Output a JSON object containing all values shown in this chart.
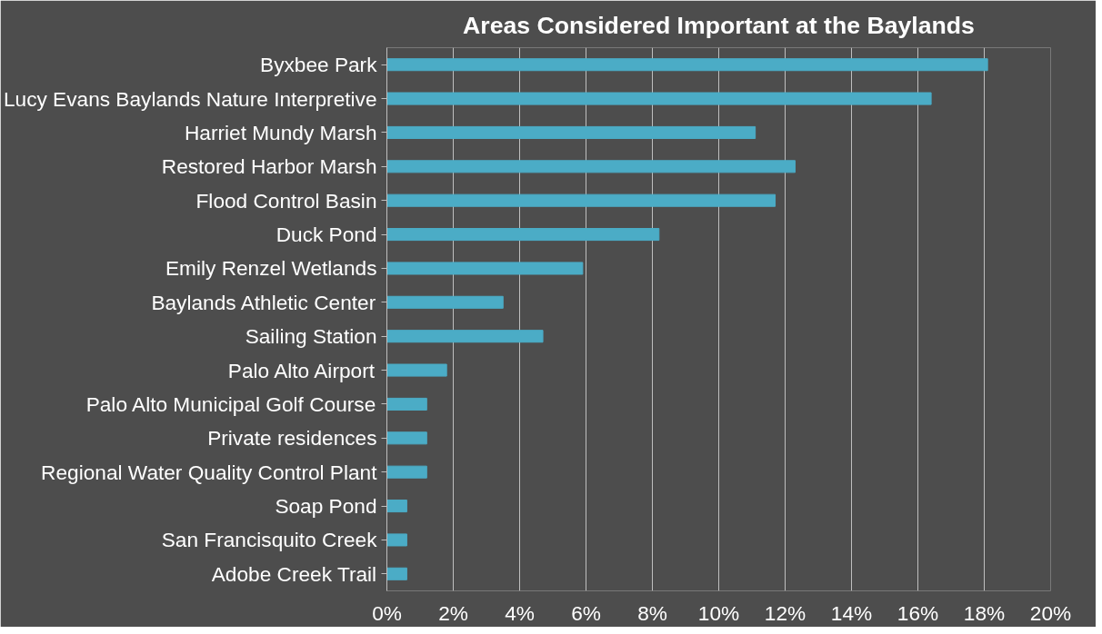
{
  "chart_data": {
    "type": "bar",
    "orientation": "horizontal",
    "title": "Areas Considered Important at the Baylands",
    "categories": [
      "Byxbee Park",
      "Lucy Evans Baylands Nature Interpretive",
      "Harriet Mundy Marsh",
      "Restored Harbor Marsh",
      "Flood Control Basin",
      "Duck Pond",
      "Emily Renzel Wetlands",
      "Baylands Athletic Center",
      "Sailing Station",
      "Palo Alto Airport",
      "Palo Alto Municipal Golf Course",
      "Private residences",
      "Regional Water Quality Control Plant",
      "Soap Pond",
      "San Francisquito Creek",
      "Adobe Creek Trail"
    ],
    "values": [
      18.1,
      16.4,
      11.1,
      12.3,
      11.7,
      8.2,
      5.9,
      3.5,
      4.7,
      1.8,
      1.2,
      1.2,
      1.2,
      0.6,
      0.6,
      0.6
    ],
    "color": "#4bacc6",
    "xlim": [
      0,
      20
    ],
    "xticks": [
      {
        "value": 0,
        "label": "0%"
      },
      {
        "value": 2,
        "label": "2%"
      },
      {
        "value": 4,
        "label": "4%"
      },
      {
        "value": 6,
        "label": "6%"
      },
      {
        "value": 8,
        "label": "8%"
      },
      {
        "value": 10,
        "label": "10%"
      },
      {
        "value": 12,
        "label": "12%"
      },
      {
        "value": 14,
        "label": "14%"
      },
      {
        "value": 16,
        "label": "16%"
      },
      {
        "value": 18,
        "label": "18%"
      },
      {
        "value": 20,
        "label": "20%"
      }
    ],
    "grid": "x"
  }
}
